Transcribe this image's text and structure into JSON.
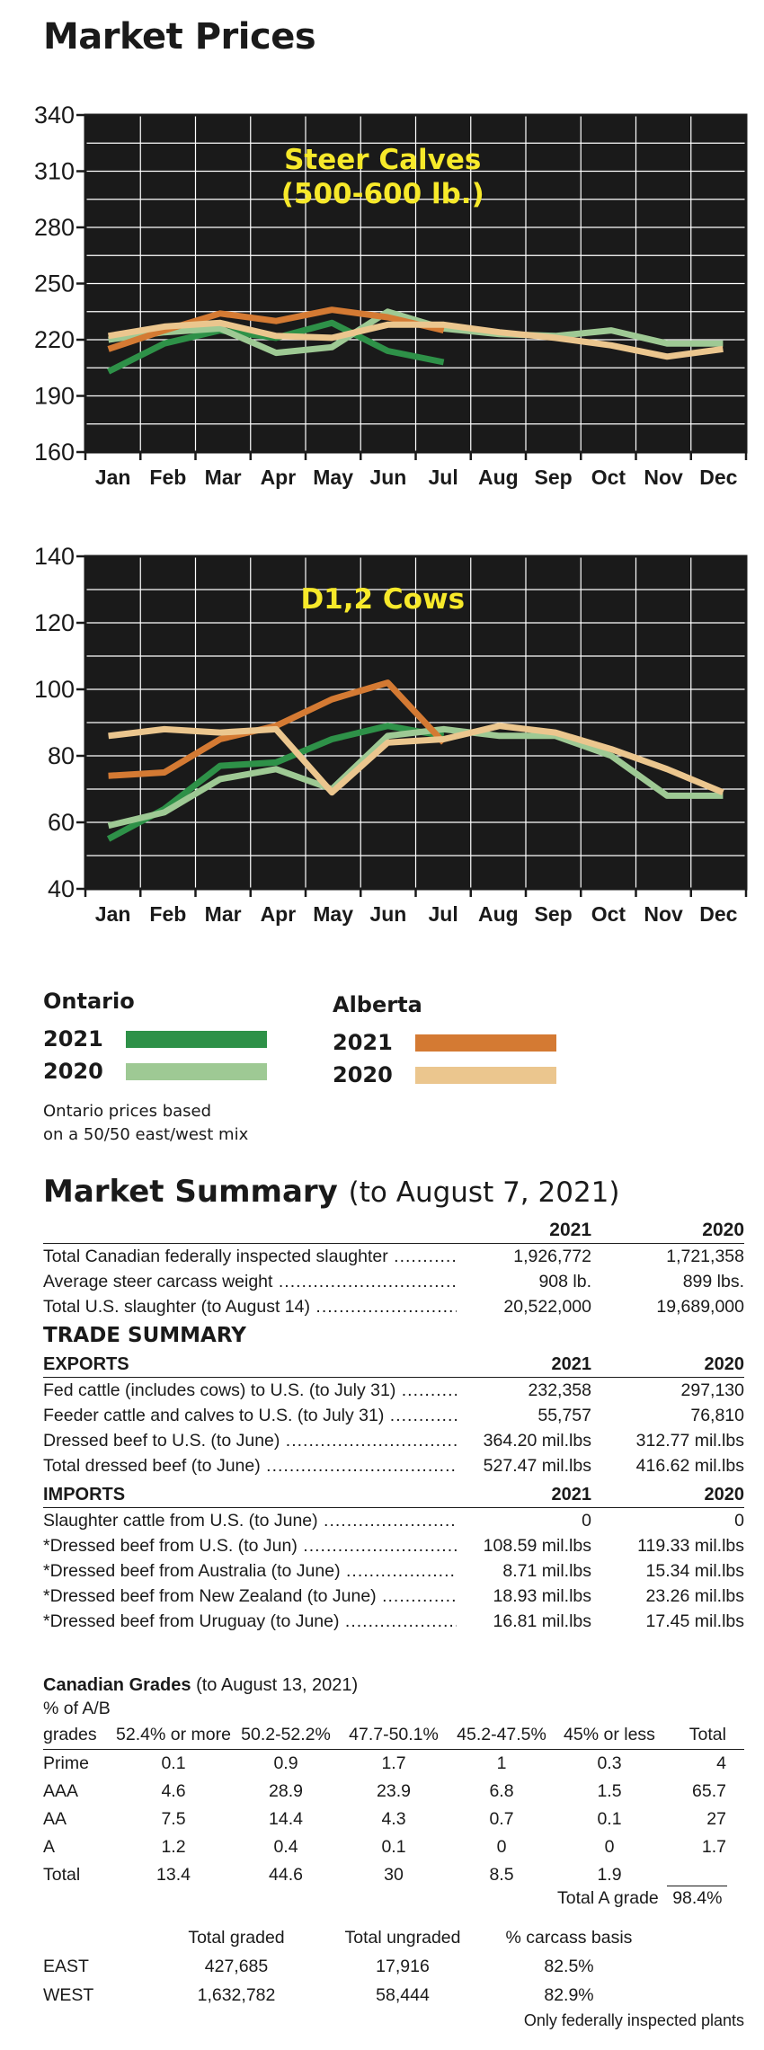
{
  "page_title": "Market Prices",
  "colors": {
    "ontario_2021": "#2e9148",
    "ontario_2020": "#9ec994",
    "alberta_2021": "#d47a33",
    "alberta_2020": "#ebc68e",
    "chart_bg": "#1a1a1a",
    "chart_title": "#f7e92a"
  },
  "chart_data": [
    {
      "type": "line",
      "title": "Steer Calves",
      "subtitle": "(500-600 lb.)",
      "categories": [
        "Jan",
        "Feb",
        "Mar",
        "Apr",
        "May",
        "Jun",
        "Jul",
        "Aug",
        "Sep",
        "Oct",
        "Nov",
        "Dec"
      ],
      "ylim": [
        160,
        340
      ],
      "yticks": [
        160,
        190,
        220,
        250,
        280,
        310,
        340
      ],
      "grid": true,
      "series": [
        {
          "name": "Ontario 2021",
          "color": "#2e9148",
          "values": [
            203,
            218,
            225,
            221,
            229,
            214,
            208,
            null,
            null,
            null,
            null,
            null
          ]
        },
        {
          "name": "Ontario 2020",
          "color": "#9ec994",
          "values": [
            220,
            224,
            226,
            213,
            216,
            235,
            226,
            223,
            222,
            225,
            218,
            218
          ]
        },
        {
          "name": "Alberta 2021",
          "color": "#d47a33",
          "values": [
            215,
            225,
            234,
            230,
            236,
            232,
            225,
            null,
            null,
            null,
            null,
            null
          ]
        },
        {
          "name": "Alberta 2020",
          "color": "#ebc68e",
          "values": [
            222,
            227,
            229,
            222,
            221,
            228,
            228,
            224,
            221,
            217,
            211,
            215
          ]
        }
      ]
    },
    {
      "type": "line",
      "title": "D1,2 Cows",
      "categories": [
        "Jan",
        "Feb",
        "Mar",
        "Apr",
        "May",
        "Jun",
        "Jul",
        "Aug",
        "Sep",
        "Oct",
        "Nov",
        "Dec"
      ],
      "ylim": [
        40,
        140
      ],
      "yticks": [
        40,
        60,
        80,
        100,
        120,
        140
      ],
      "grid": true,
      "series": [
        {
          "name": "Ontario 2021",
          "color": "#2e9148",
          "values": [
            55,
            64,
            77,
            78,
            85,
            89,
            86,
            null,
            null,
            null,
            null,
            null
          ]
        },
        {
          "name": "Ontario 2020",
          "color": "#9ec994",
          "values": [
            59,
            63,
            73,
            76,
            70,
            86,
            88,
            86,
            86,
            80,
            68,
            68
          ]
        },
        {
          "name": "Alberta 2021",
          "color": "#d47a33",
          "values": [
            74,
            75,
            85,
            89,
            97,
            102,
            84,
            null,
            null,
            null,
            null,
            null
          ]
        },
        {
          "name": "Alberta 2020",
          "color": "#ebc68e",
          "values": [
            86,
            88,
            87,
            88,
            69,
            84,
            85,
            89,
            87,
            82,
            76,
            69
          ]
        }
      ]
    }
  ],
  "legend": {
    "ontario": {
      "heading": "Ontario",
      "year1": "2021",
      "year2": "2020"
    },
    "alberta": {
      "heading": "Alberta",
      "year1": "2021",
      "year2": "2020"
    },
    "note_line1": "Ontario prices based",
    "note_line2": "on a 50/50 east/west mix"
  },
  "summary": {
    "title": "Market Summary",
    "date": "(to August 7, 2021)",
    "col1": "2021",
    "col2": "2020",
    "rows": [
      {
        "label": "Total Canadian federally inspected slaughter",
        "v1": "1,926,772",
        "v2": "1,721,358"
      },
      {
        "label": "Average steer carcass weight",
        "v1": "908 lb.",
        "v2": "899 lbs."
      },
      {
        "label": "Total U.S. slaughter (to August 14)",
        "v1": "20,522,000",
        "v2": "19,689,000"
      }
    ],
    "trade_title": "TRADE SUMMARY",
    "exports_head": "EXPORTS",
    "exports": [
      {
        "label": "Fed cattle (includes cows) to U.S. (to July 31)",
        "v1": "232,358",
        "v2": "297,130"
      },
      {
        "label": "Feeder cattle and calves to U.S. (to July 31)",
        "v1": "55,757",
        "v2": "76,810"
      },
      {
        "label": "Dressed beef to U.S. (to June)",
        "v1": "364.20 mil.lbs",
        "v2": "312.77 mil.lbs"
      },
      {
        "label": "Total dressed beef (to June)",
        "v1": "527.47 mil.lbs",
        "v2": "416.62 mil.lbs"
      }
    ],
    "imports_head": "IMPORTS",
    "imports": [
      {
        "label": "Slaughter cattle from U.S. (to June)",
        "v1": "0",
        "v2": "0"
      },
      {
        "label": "*Dressed beef from U.S. (to Jun)",
        "v1": "108.59 mil.lbs",
        "v2": "119.33 mil.lbs"
      },
      {
        "label": "*Dressed beef from Australia (to June)",
        "v1": "8.71 mil.lbs",
        "v2": "15.34 mil.lbs"
      },
      {
        "label": "*Dressed beef from New Zealand (to June)",
        "v1": "18.93 mil.lbs",
        "v2": "23.26 mil.lbs"
      },
      {
        "label": "*Dressed beef from Uruguay (to June)",
        "v1": "16.81 mil.lbs",
        "v2": "17.45 mil.lbs"
      }
    ]
  },
  "grades": {
    "title": "Canadian Grades",
    "date": "(to August 13, 2021)",
    "sub": "% of A/B",
    "header": [
      "grades",
      "52.4% or more",
      "50.2-52.2%",
      "47.7-50.1%",
      "45.2-47.5%",
      "45% or less",
      "Total"
    ],
    "rows": [
      [
        "Prime",
        "0.1",
        "0.9",
        "1.7",
        "1",
        "0.3",
        "4"
      ],
      [
        "AAA",
        "4.6",
        "28.9",
        "23.9",
        "6.8",
        "1.5",
        "65.7"
      ],
      [
        "AA",
        "7.5",
        "14.4",
        "4.3",
        "0.7",
        "0.1",
        "27"
      ],
      [
        "A",
        "1.2",
        "0.4",
        "0.1",
        "0",
        "0",
        "1.7"
      ],
      [
        "Total",
        "13.4",
        "44.6",
        "30",
        "8.5",
        "1.9",
        ""
      ]
    ],
    "total_a_label": "Total A grade",
    "total_a_value": "98.4%"
  },
  "carcass": {
    "header": [
      "",
      "Total graded",
      "Total ungraded",
      "% carcass basis"
    ],
    "rows": [
      [
        "EAST",
        "427,685",
        "17,916",
        "82.5%"
      ],
      [
        "WEST",
        "1,632,782",
        "58,444",
        "82.9%"
      ]
    ]
  },
  "footnote": "Only federally inspected plants"
}
